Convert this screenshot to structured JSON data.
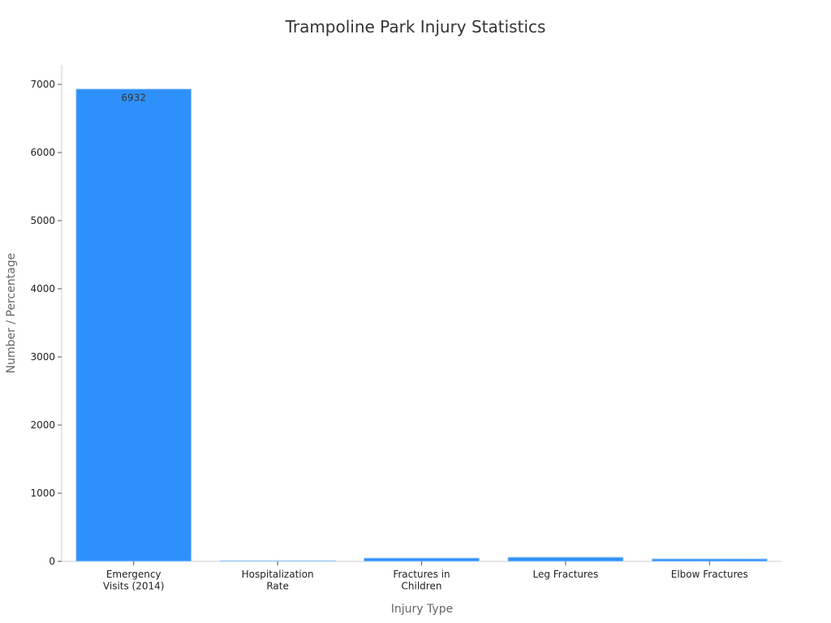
{
  "chart_data": {
    "type": "bar",
    "title": "Trampoline Park Injury Statistics",
    "x_label": "Injury Type",
    "y_label": "Number / Percentage",
    "categories": [
      "Emergency\nVisits (2014)",
      "Hospitalization\nRate",
      "Fractures in\nChildren",
      "Leg Fractures",
      "Elbow Fractures"
    ],
    "values": [
      6932,
      10,
      48,
      60,
      36
    ],
    "color": "#2e90fa",
    "ylim": [
      0,
      7286
    ],
    "yticks": [
      0,
      1000,
      2000,
      3000,
      4000,
      5000,
      6000,
      7000
    ],
    "grid": false
  }
}
